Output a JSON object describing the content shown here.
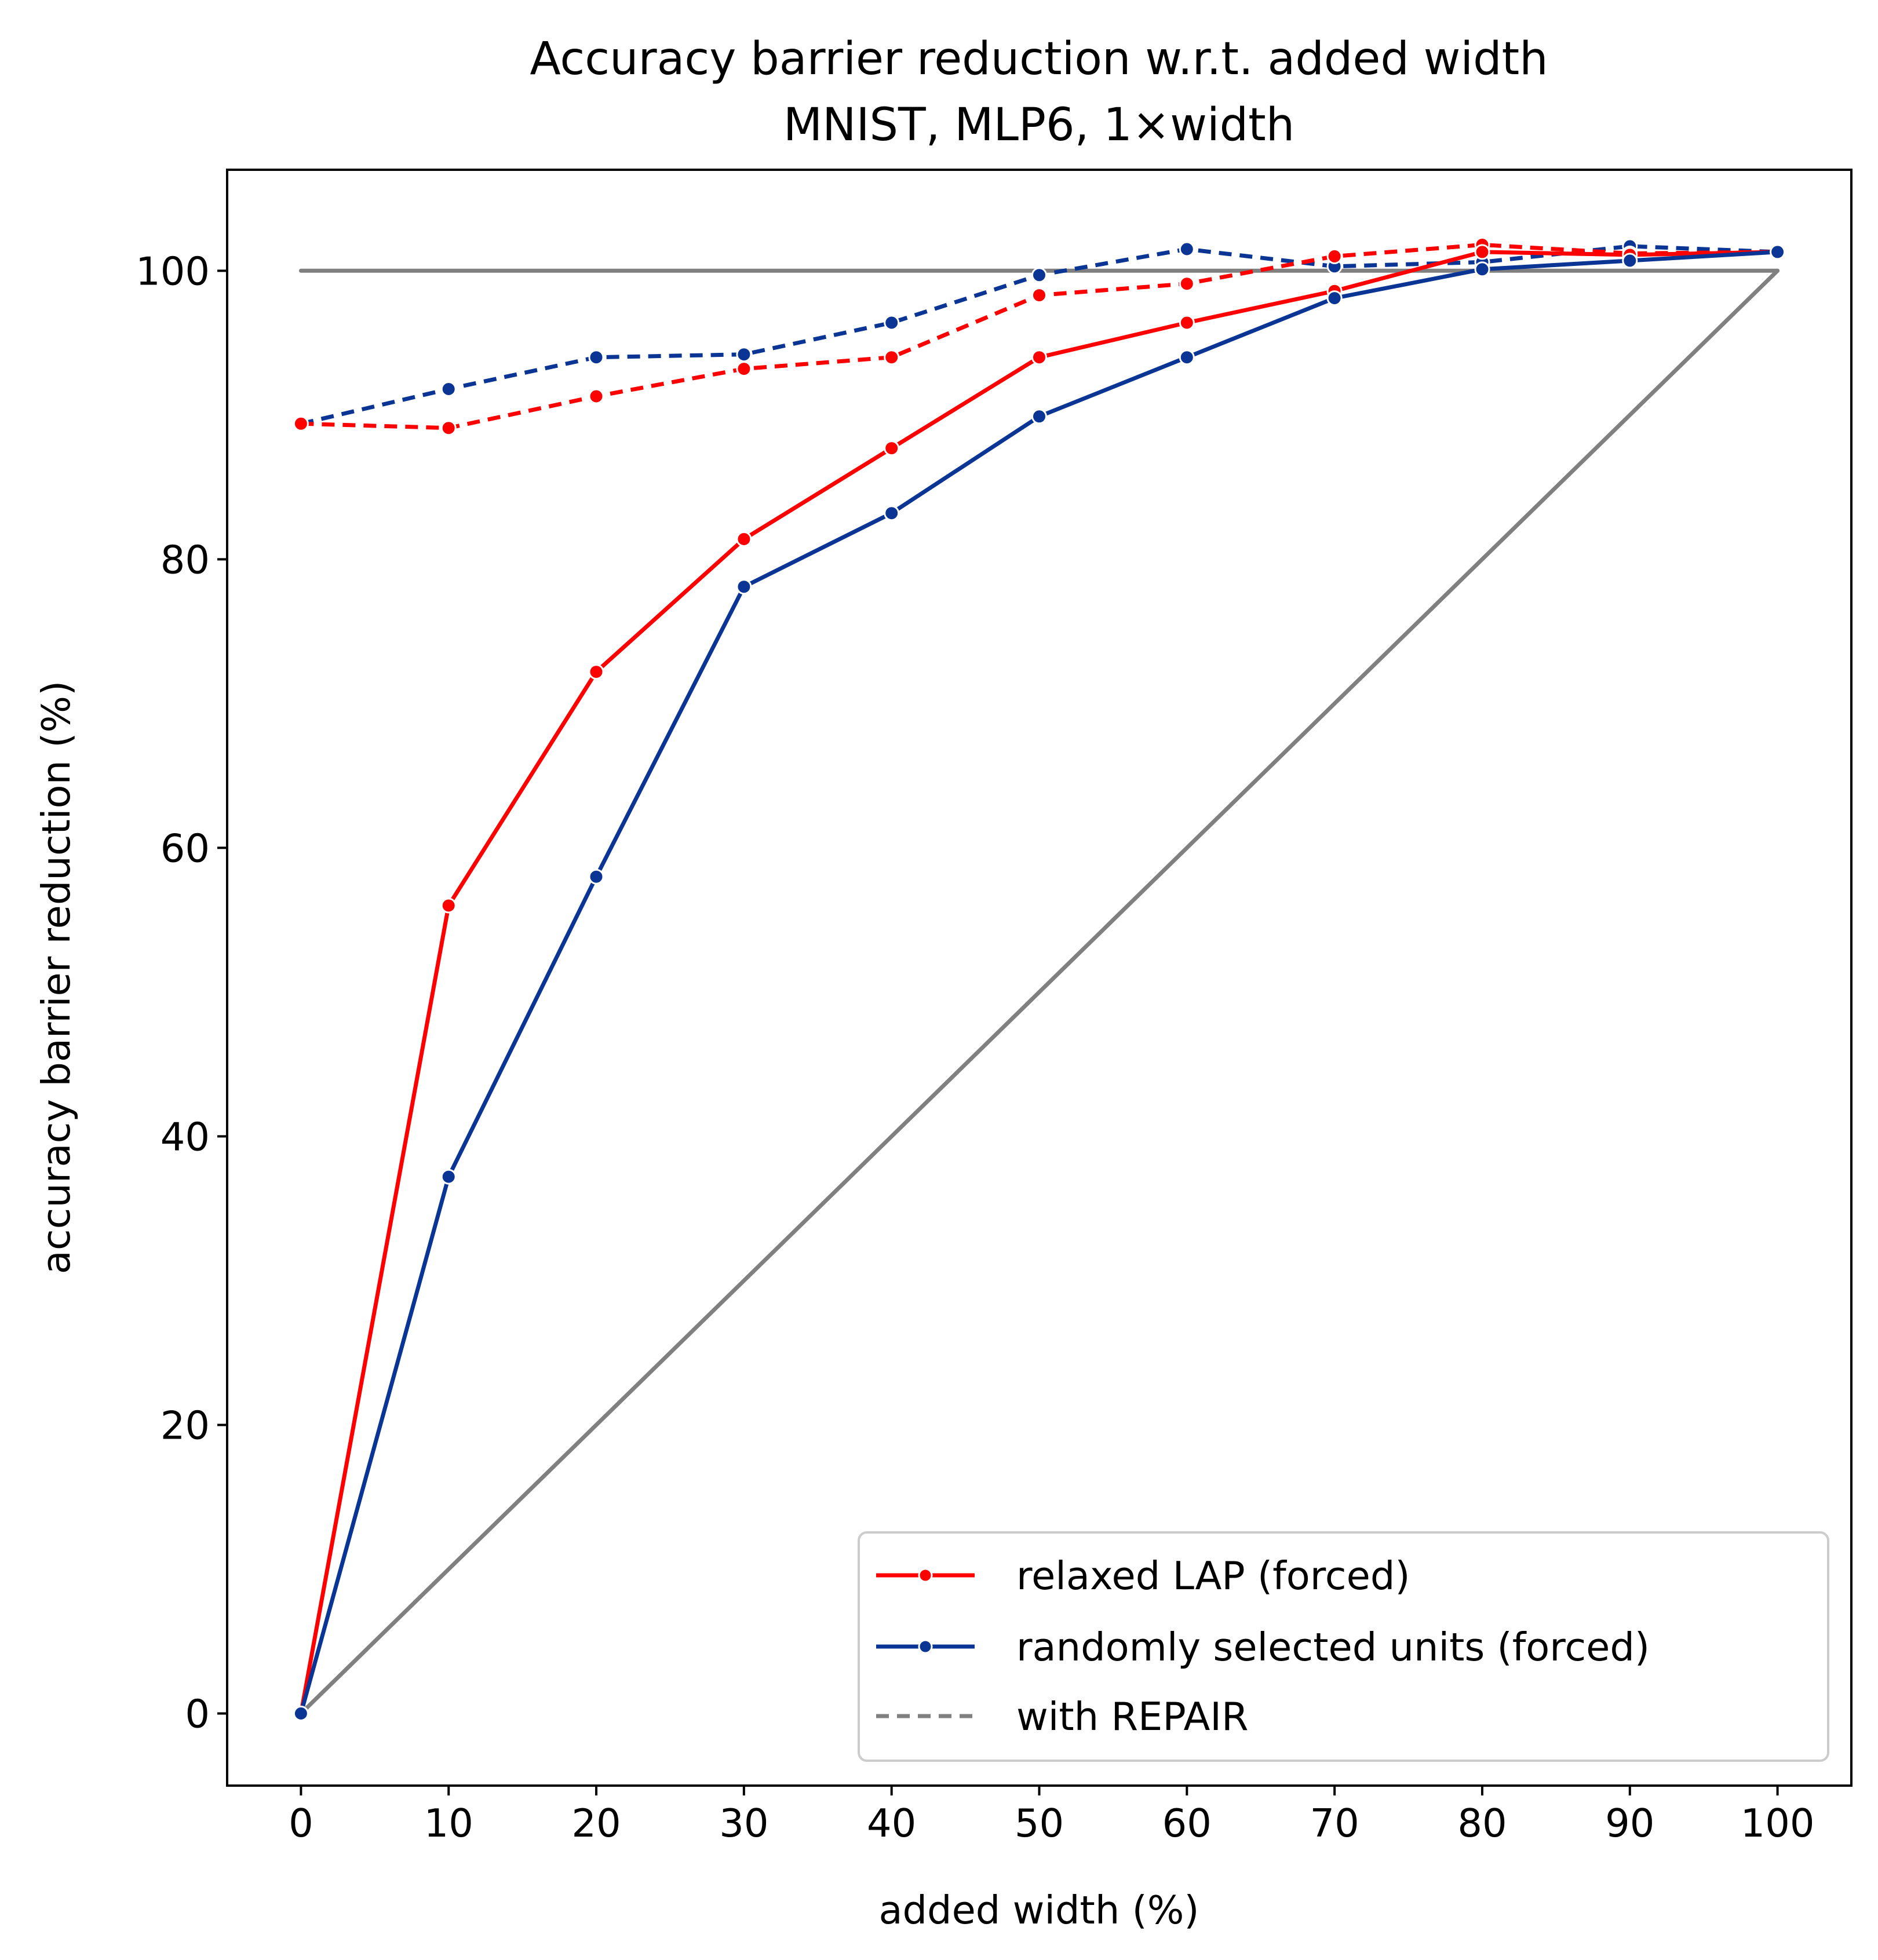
{
  "chart_data": {
    "type": "line",
    "title": "Accuracy barrier reduction w.r.t. added width",
    "subtitle": "MNIST, MLP6, 1×width",
    "xlabel": "added width (%)",
    "ylabel": "accuracy barrier reduction (%)",
    "xlim": [
      -5,
      105
    ],
    "ylim": [
      -5,
      107
    ],
    "xticks": [
      0,
      10,
      20,
      30,
      40,
      50,
      60,
      70,
      80,
      90,
      100
    ],
    "yticks": [
      0,
      20,
      40,
      60,
      80,
      100
    ],
    "grid": false,
    "legend_position": "lower-right",
    "x": [
      0,
      10,
      20,
      30,
      40,
      50,
      60,
      70,
      80,
      90,
      100
    ],
    "series": [
      {
        "name": "relaxed LAP (forced)",
        "color": "#ff0000",
        "style": "solid",
        "marker": "dot",
        "values": [
          0.0,
          56.0,
          72.2,
          81.4,
          87.7,
          94.0,
          96.4,
          98.6,
          101.3,
          101.1,
          101.3
        ]
      },
      {
        "name": "randomly selected units (forced)",
        "color": "#0a3594",
        "style": "solid",
        "marker": "dot",
        "values": [
          0.0,
          37.2,
          58.0,
          78.1,
          83.2,
          89.9,
          94.0,
          98.1,
          100.1,
          100.7,
          101.3
        ]
      },
      {
        "name": "",
        "color": "#ff0000",
        "style": "dashed",
        "marker": "dot",
        "values": [
          89.4,
          89.1,
          91.3,
          93.2,
          94.0,
          98.3,
          99.1,
          101.0,
          101.8,
          101.2,
          101.3
        ]
      },
      {
        "name": "",
        "color": "#0a3594",
        "style": "dashed",
        "marker": "dot",
        "values": [
          89.4,
          91.8,
          94.0,
          94.2,
          96.4,
          99.7,
          101.5,
          100.3,
          100.6,
          101.7,
          101.3
        ]
      },
      {
        "name": "",
        "color": "#808080",
        "style": "solid",
        "marker": "none",
        "values": [
          100,
          100,
          100,
          100,
          100,
          100,
          100,
          100,
          100,
          100,
          100
        ]
      },
      {
        "name": "",
        "color": "#808080",
        "style": "solid",
        "marker": "none",
        "values": [
          0,
          10,
          20,
          30,
          40,
          50,
          60,
          70,
          80,
          90,
          100
        ]
      }
    ],
    "legend": [
      {
        "label": "relaxed LAP (forced)",
        "color": "#ff0000",
        "style": "solid",
        "marker": "dot"
      },
      {
        "label": "randomly selected units (forced)",
        "color": "#0a3594",
        "style": "solid",
        "marker": "dot"
      },
      {
        "label": "with REPAIR",
        "color": "#808080",
        "style": "dashed",
        "marker": "none"
      }
    ]
  }
}
